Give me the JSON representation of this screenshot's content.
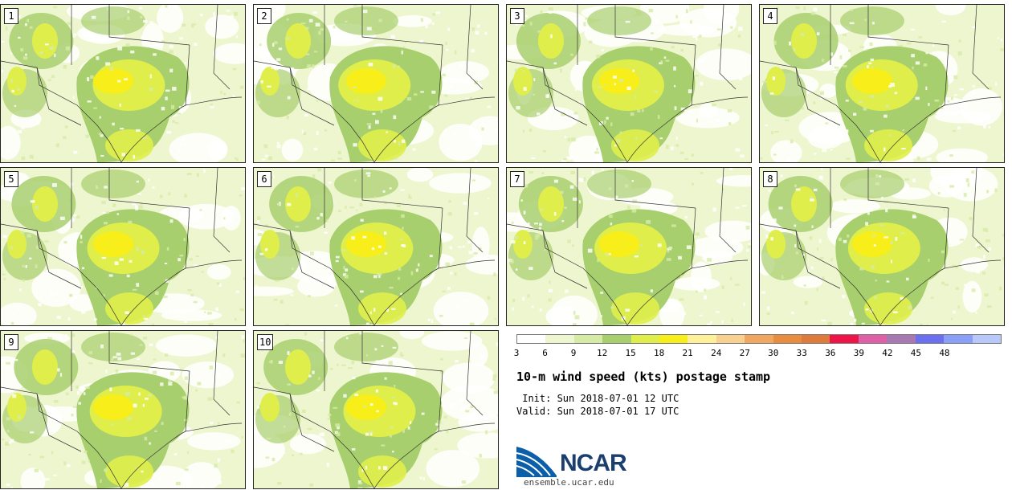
{
  "panels": [
    {
      "label": "1"
    },
    {
      "label": "2"
    },
    {
      "label": "3"
    },
    {
      "label": "4"
    },
    {
      "label": "5"
    },
    {
      "label": "6"
    },
    {
      "label": "7"
    },
    {
      "label": "8"
    },
    {
      "label": "9"
    },
    {
      "label": "10"
    }
  ],
  "legend": {
    "colors": [
      "#ffffff",
      "#eef6cf",
      "#d6eba6",
      "#a8cf6e",
      "#dfee4a",
      "#f8ee1a",
      "#fff09a",
      "#f8d090",
      "#f0a860",
      "#e88c40",
      "#de7a3a",
      "#ee1448",
      "#e060a8",
      "#a878b0",
      "#6a70f0",
      "#8aa0f8",
      "#b8c8f8"
    ],
    "ticks": [
      "3",
      "6",
      "9",
      "12",
      "15",
      "18",
      "21",
      "24",
      "27",
      "30",
      "33",
      "36",
      "39",
      "42",
      "45",
      "48"
    ]
  },
  "title": "10-m wind speed (kts) postage stamp",
  "init_line": " Init: Sun 2018-07-01 12 UTC",
  "valid_line": "Valid: Sun 2018-07-01 17 UTC",
  "logo": {
    "name": "NCAR",
    "url": "ensemble.ucar.edu"
  }
}
